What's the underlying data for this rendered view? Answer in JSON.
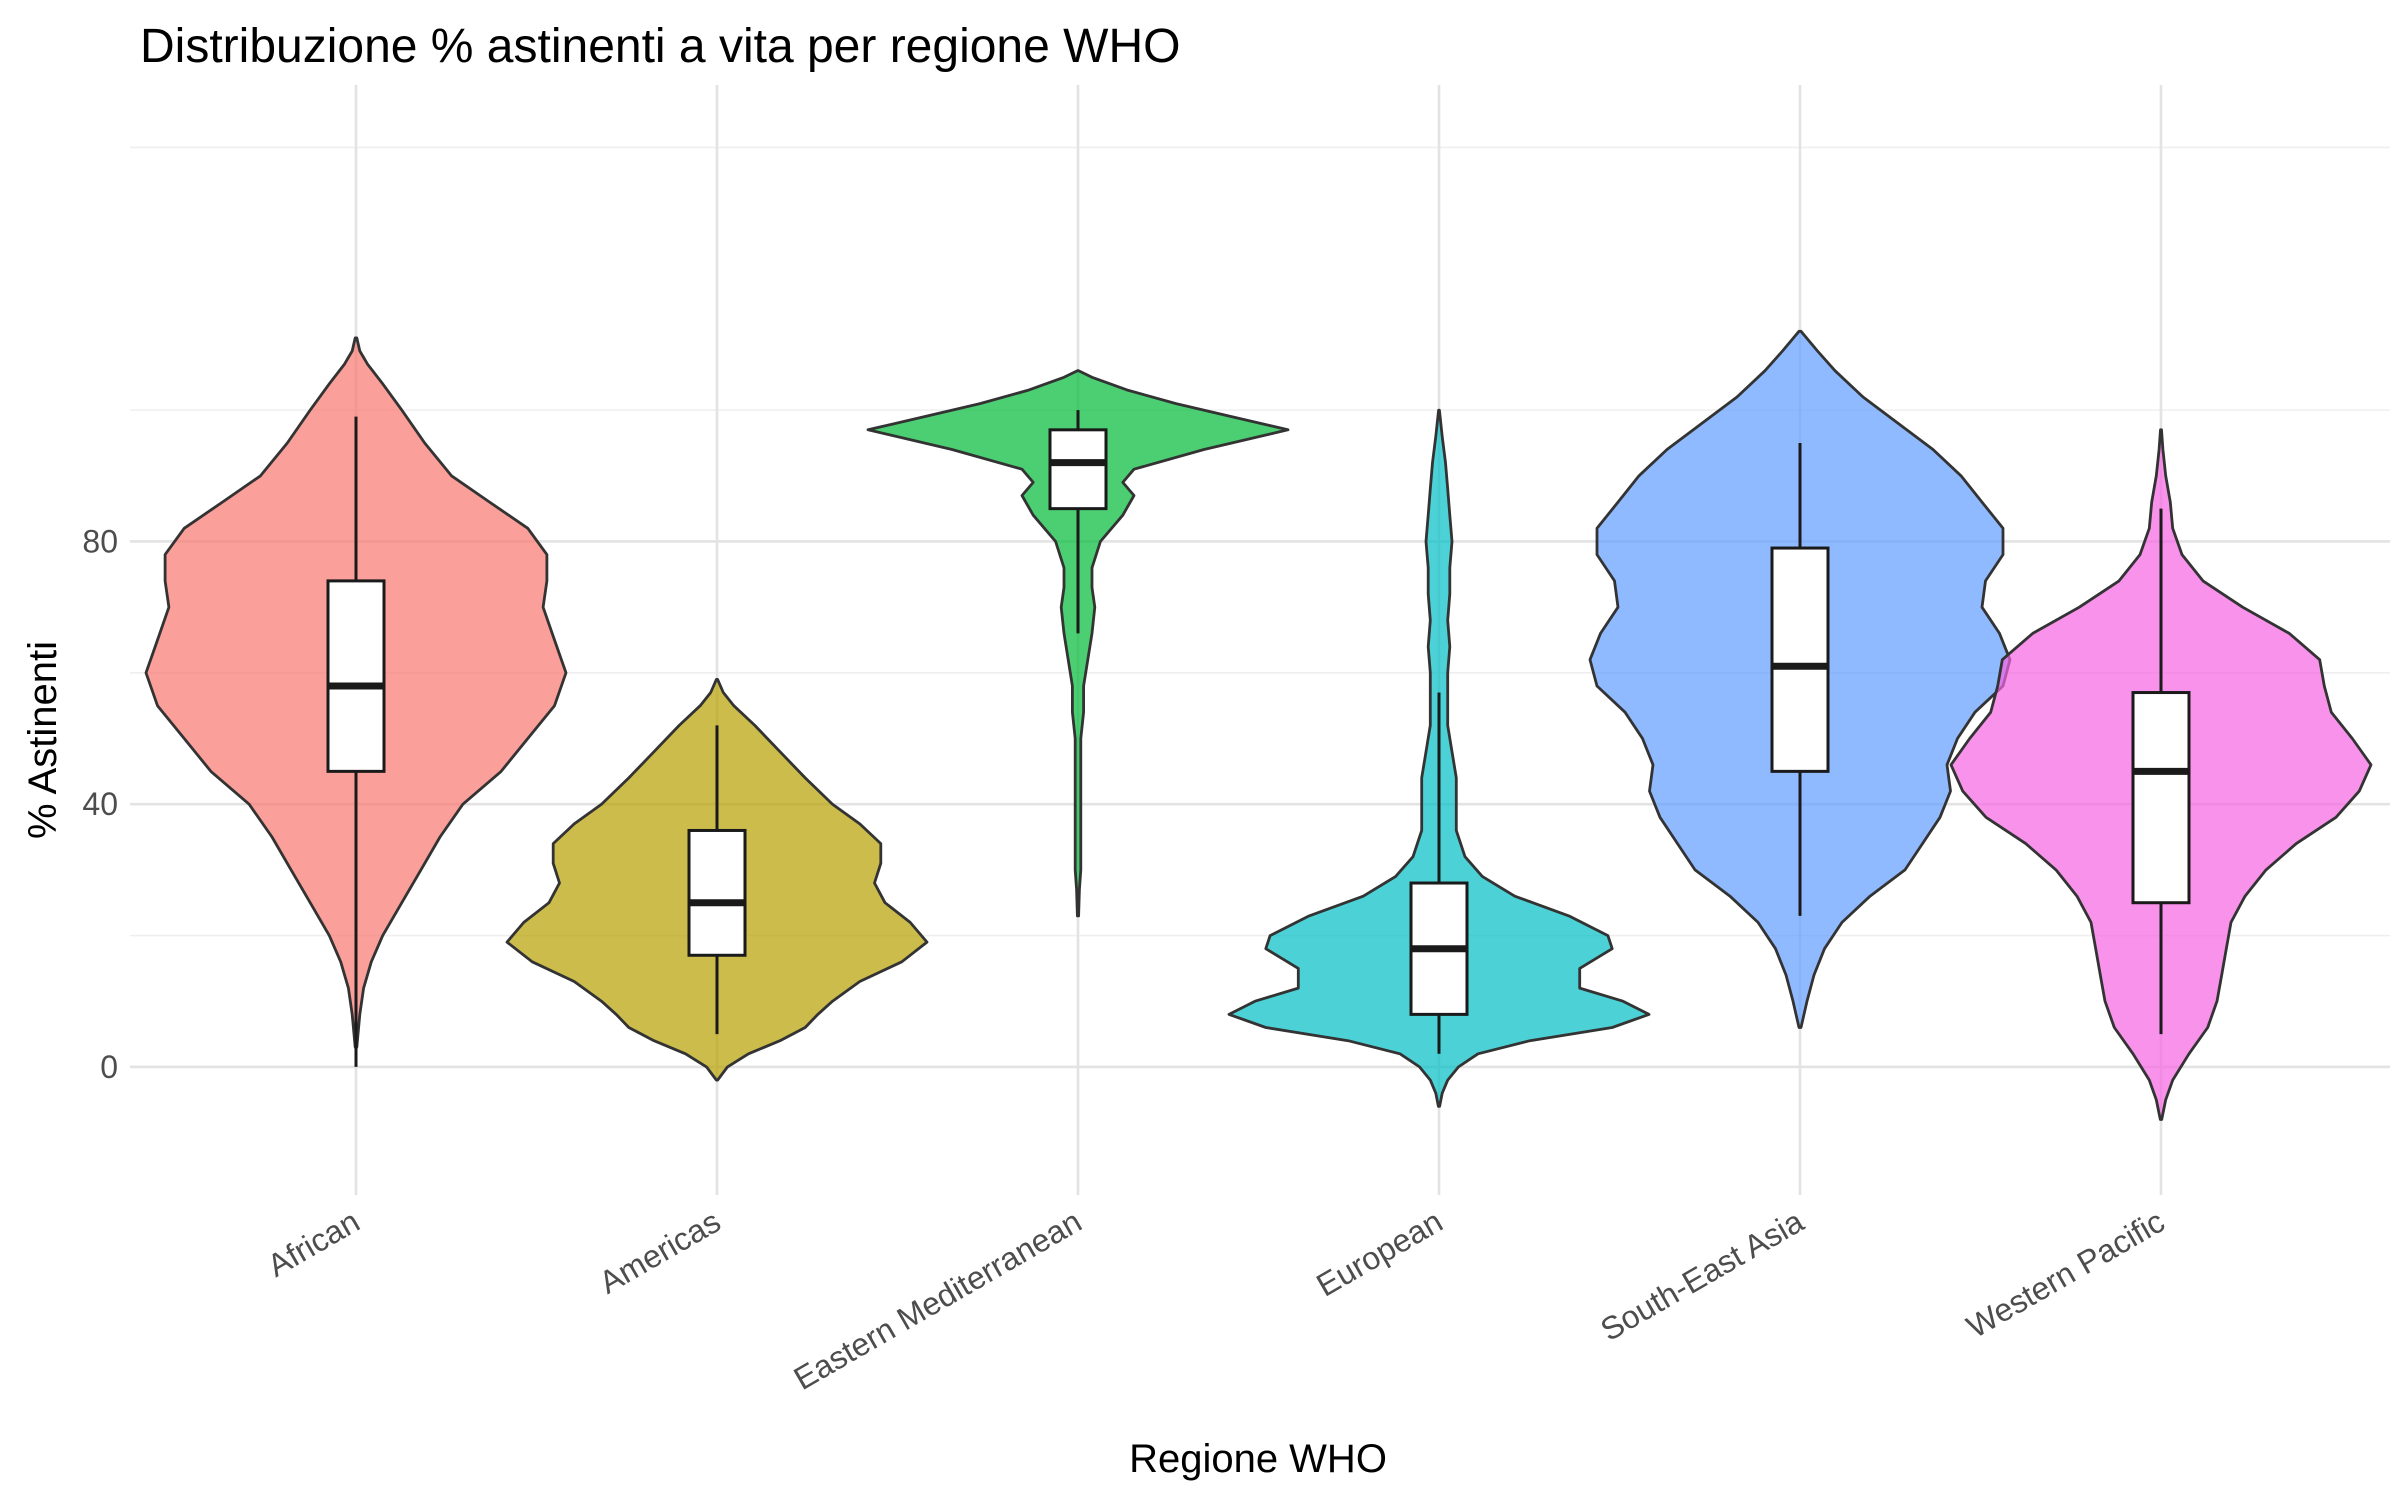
{
  "chart_data": {
    "type": "violin",
    "title": "Distribuzione % astinenti a vita per regione WHO",
    "xlabel": "Regione WHO",
    "ylabel": "% Astinenti",
    "ylim": [
      -19.5,
      149.5
    ],
    "yticks": [
      0,
      40,
      80
    ],
    "grid": true,
    "legend": "none",
    "categories": [
      "African",
      "Americas",
      "Eastern Mediterranean",
      "European",
      "South-East Asia",
      "Western Pacific"
    ],
    "series": [
      {
        "category": "African",
        "color": "#F8766D",
        "box": {
          "whisker_low": 0,
          "q1": 45,
          "median": 58,
          "q3": 74,
          "whisker_high": 99
        },
        "range": [
          3,
          111
        ],
        "density": [
          [
            3,
            0.002
          ],
          [
            8,
            0.01
          ],
          [
            12,
            0.02
          ],
          [
            16,
            0.04
          ],
          [
            20,
            0.07
          ],
          [
            25,
            0.12
          ],
          [
            30,
            0.17
          ],
          [
            35,
            0.22
          ],
          [
            40,
            0.28
          ],
          [
            45,
            0.38
          ],
          [
            50,
            0.45
          ],
          [
            55,
            0.52
          ],
          [
            60,
            0.55
          ],
          [
            65,
            0.52
          ],
          [
            70,
            0.49
          ],
          [
            74,
            0.5
          ],
          [
            78,
            0.5
          ],
          [
            82,
            0.45
          ],
          [
            86,
            0.35
          ],
          [
            90,
            0.25
          ],
          [
            95,
            0.18
          ],
          [
            100,
            0.12
          ],
          [
            104,
            0.07
          ],
          [
            107,
            0.03
          ],
          [
            109,
            0.01
          ],
          [
            111,
            0.002
          ]
        ]
      },
      {
        "category": "Americas",
        "color": "#B79F00",
        "box": {
          "whisker_low": 5,
          "q1": 17,
          "median": 25,
          "q3": 36,
          "whisker_high": 52
        },
        "range": [
          -2,
          59
        ],
        "density": [
          [
            -2,
            0.003
          ],
          [
            0,
            0.05
          ],
          [
            2,
            0.15
          ],
          [
            4,
            0.3
          ],
          [
            6,
            0.42
          ],
          [
            8,
            0.48
          ],
          [
            10,
            0.55
          ],
          [
            13,
            0.68
          ],
          [
            16,
            0.88
          ],
          [
            19,
            1.0
          ],
          [
            22,
            0.92
          ],
          [
            25,
            0.8
          ],
          [
            28,
            0.75
          ],
          [
            31,
            0.78
          ],
          [
            34,
            0.78
          ],
          [
            37,
            0.68
          ],
          [
            40,
            0.55
          ],
          [
            44,
            0.42
          ],
          [
            48,
            0.3
          ],
          [
            52,
            0.18
          ],
          [
            55,
            0.08
          ],
          [
            57,
            0.03
          ],
          [
            59,
            0.003
          ]
        ]
      },
      {
        "category": "Eastern Mediterranean",
        "color": "#00BA38",
        "box": {
          "whisker_low": 66,
          "q1": 85,
          "median": 92,
          "q3": 97,
          "whisker_high": 100
        },
        "range": [
          23,
          106
        ],
        "density": [
          [
            23,
            0.002
          ],
          [
            27,
            0.005
          ],
          [
            30,
            0.01
          ],
          [
            34,
            0.01
          ],
          [
            38,
            0.01
          ],
          [
            42,
            0.01
          ],
          [
            46,
            0.01
          ],
          [
            50,
            0.01
          ],
          [
            54,
            0.02
          ],
          [
            58,
            0.02
          ],
          [
            62,
            0.035
          ],
          [
            66,
            0.05
          ],
          [
            70,
            0.06
          ],
          [
            73,
            0.05
          ],
          [
            76,
            0.05
          ],
          [
            80,
            0.08
          ],
          [
            84,
            0.16
          ],
          [
            87,
            0.2
          ],
          [
            89,
            0.16
          ],
          [
            91,
            0.2
          ],
          [
            94,
            0.45
          ],
          [
            97,
            0.75
          ],
          [
            99,
            0.55
          ],
          [
            101,
            0.35
          ],
          [
            103,
            0.18
          ],
          [
            105,
            0.05
          ],
          [
            106,
            0.002
          ]
        ]
      },
      {
        "category": "European",
        "color": "#00BFC4",
        "box": {
          "whisker_low": 2,
          "q1": 8,
          "median": 18,
          "q3": 28,
          "whisker_high": 57
        },
        "range": [
          -6,
          100
        ],
        "density": [
          [
            -6,
            0.003
          ],
          [
            -4,
            0.015
          ],
          [
            -2,
            0.04
          ],
          [
            0,
            0.09
          ],
          [
            2,
            0.18
          ],
          [
            4,
            0.42
          ],
          [
            6,
            0.8
          ],
          [
            8,
            0.97
          ],
          [
            10,
            0.85
          ],
          [
            12,
            0.65
          ],
          [
            15,
            0.65
          ],
          [
            18,
            0.8
          ],
          [
            20,
            0.78
          ],
          [
            23,
            0.6
          ],
          [
            26,
            0.35
          ],
          [
            29,
            0.2
          ],
          [
            32,
            0.12
          ],
          [
            36,
            0.08
          ],
          [
            40,
            0.08
          ],
          [
            44,
            0.08
          ],
          [
            48,
            0.06
          ],
          [
            52,
            0.04
          ],
          [
            56,
            0.04
          ],
          [
            60,
            0.04
          ],
          [
            64,
            0.05
          ],
          [
            68,
            0.04
          ],
          [
            72,
            0.05
          ],
          [
            76,
            0.05
          ],
          [
            80,
            0.06
          ],
          [
            84,
            0.05
          ],
          [
            88,
            0.04
          ],
          [
            92,
            0.03
          ],
          [
            96,
            0.015
          ],
          [
            100,
            0.002
          ]
        ]
      },
      {
        "category": "South-East Asia",
        "color": "#619CFF",
        "box": {
          "whisker_low": 23,
          "q1": 45,
          "median": 61,
          "q3": 79,
          "whisker_high": 95
        },
        "range": [
          6,
          112
        ],
        "density": [
          [
            6,
            0.003
          ],
          [
            10,
            0.02
          ],
          [
            14,
            0.04
          ],
          [
            18,
            0.07
          ],
          [
            22,
            0.12
          ],
          [
            26,
            0.2
          ],
          [
            30,
            0.3
          ],
          [
            34,
            0.35
          ],
          [
            38,
            0.4
          ],
          [
            42,
            0.43
          ],
          [
            46,
            0.42
          ],
          [
            50,
            0.45
          ],
          [
            54,
            0.5
          ],
          [
            58,
            0.58
          ],
          [
            62,
            0.6
          ],
          [
            66,
            0.57
          ],
          [
            70,
            0.52
          ],
          [
            74,
            0.53
          ],
          [
            78,
            0.58
          ],
          [
            82,
            0.58
          ],
          [
            86,
            0.52
          ],
          [
            90,
            0.46
          ],
          [
            94,
            0.38
          ],
          [
            98,
            0.28
          ],
          [
            102,
            0.18
          ],
          [
            106,
            0.1
          ],
          [
            109,
            0.05
          ],
          [
            112,
            0.003
          ]
        ]
      },
      {
        "category": "Western Pacific",
        "color": "#F564E3",
        "box": {
          "whisker_low": 5,
          "q1": 25,
          "median": 45,
          "q3": 57,
          "whisker_high": 85
        },
        "range": [
          -8,
          97
        ],
        "density": [
          [
            -8,
            0.003
          ],
          [
            -5,
            0.02
          ],
          [
            -2,
            0.05
          ],
          [
            2,
            0.12
          ],
          [
            6,
            0.2
          ],
          [
            10,
            0.24
          ],
          [
            14,
            0.26
          ],
          [
            18,
            0.28
          ],
          [
            22,
            0.3
          ],
          [
            26,
            0.36
          ],
          [
            30,
            0.45
          ],
          [
            34,
            0.58
          ],
          [
            38,
            0.75
          ],
          [
            42,
            0.85
          ],
          [
            46,
            0.9
          ],
          [
            50,
            0.82
          ],
          [
            54,
            0.73
          ],
          [
            58,
            0.7
          ],
          [
            62,
            0.68
          ],
          [
            66,
            0.55
          ],
          [
            70,
            0.35
          ],
          [
            74,
            0.18
          ],
          [
            78,
            0.09
          ],
          [
            82,
            0.05
          ],
          [
            86,
            0.04
          ],
          [
            90,
            0.02
          ],
          [
            94,
            0.008
          ],
          [
            97,
            0.002
          ]
        ]
      }
    ]
  }
}
